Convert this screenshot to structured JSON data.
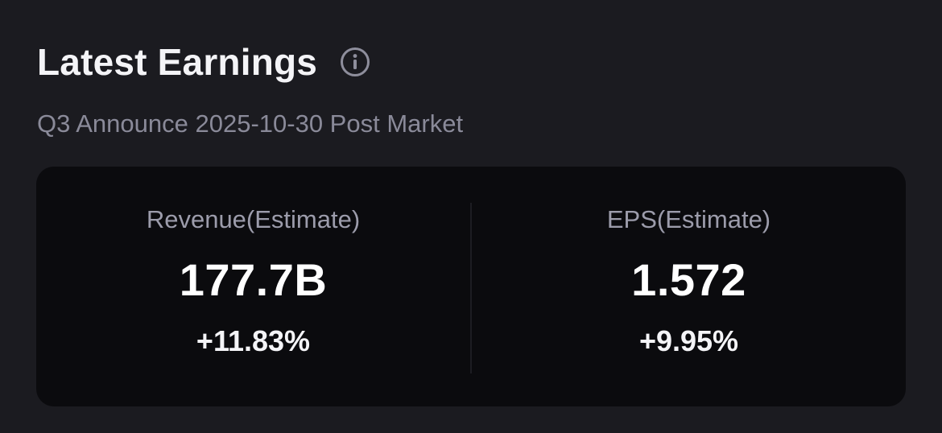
{
  "header": {
    "title": "Latest Earnings",
    "info_icon": "info-circle-icon"
  },
  "subtitle": "Q3 Announce 2025-10-30 Post Market",
  "metrics": [
    {
      "label": "Revenue(Estimate)",
      "value": "177.7B",
      "change": "+11.83%"
    },
    {
      "label": "EPS(Estimate)",
      "value": "1.572",
      "change": "+9.95%"
    }
  ],
  "colors": {
    "background": "#1b1b20",
    "card": "#0b0b0e",
    "muted_text": "#8a8a99",
    "primary_text": "#ffffff"
  }
}
